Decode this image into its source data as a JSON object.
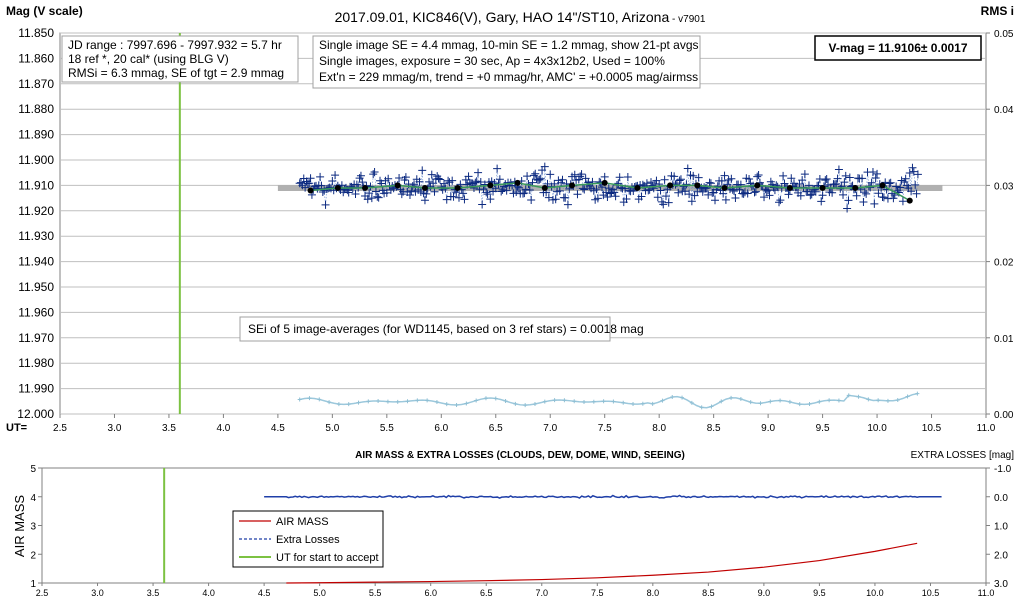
{
  "chart_data": [
    {
      "type": "scatter",
      "title": "2017.09.01,  KIC846(V),  Gary,  HAO  14\"/ST10,  Arizona",
      "title_version": " - v7901",
      "ylabel": "Mag (V scale)",
      "y2label": "RMS i",
      "xlabel": "UT=",
      "xlim": [
        2.5,
        11.0
      ],
      "ylim": [
        11.85,
        12.0
      ],
      "y_reversed": true,
      "y2lim": [
        0.0,
        0.05
      ],
      "x_ticks": [
        "2.5",
        "3.0",
        "3.5",
        "4.0",
        "4.5",
        "5.0",
        "5.5",
        "6.0",
        "6.5",
        "7.0",
        "7.5",
        "8.0",
        "8.5",
        "9.0",
        "9.5",
        "10.0",
        "10.5",
        "11.0"
      ],
      "y_ticks": [
        "11.850",
        "11.860",
        "11.870",
        "11.880",
        "11.890",
        "11.900",
        "11.910",
        "11.920",
        "11.930",
        "11.940",
        "11.950",
        "11.960",
        "11.970",
        "11.980",
        "11.990",
        "12.000"
      ],
      "y2_ticks": [
        "0.00",
        "0.01",
        "0.02",
        "0.03",
        "0.04",
        "0.05"
      ],
      "grid": true,
      "vertical_line_ut": 3.6,
      "reference_line": {
        "x": [
          4.5,
          10.6
        ],
        "y": 11.911
      },
      "single_images": {
        "x_range": [
          4.7,
          10.38
        ],
        "mean": 11.911,
        "scatter_mmag": 4.4
      },
      "averages_21pt": {
        "x": [
          4.8,
          5.05,
          5.3,
          5.6,
          5.85,
          6.15,
          6.45,
          6.7,
          6.95,
          7.2,
          7.5,
          7.8,
          8.1,
          8.35,
          8.6,
          8.9,
          9.2,
          9.5,
          9.8,
          10.05,
          10.3
        ],
        "y": [
          11.912,
          11.911,
          11.911,
          11.91,
          11.911,
          11.911,
          11.91,
          11.909,
          11.911,
          11.91,
          11.909,
          11.911,
          11.91,
          11.91,
          11.911,
          11.91,
          11.911,
          11.911,
          11.911,
          11.91,
          11.916
        ]
      },
      "rms_series": {
        "x_range": [
          4.7,
          10.38
        ],
        "values_approx": [
          0.0012,
          0.0025
        ]
      },
      "info_box_1": [
        "JD range : 7997.696 - 7997.932 =  5.7  hr",
        "18 ref *, 20 cal* (using BLG V)",
        "RMSi = 6.3 mmag, SE of tgt = 2.9 mmag"
      ],
      "info_box_2": [
        "Single image SE = 4.4 mmag, 10-min SE = 1.2 mmag, show 21-pt avgs",
        "Single images, exposure = 30 sec, Ap = 4x3x12b2, Used = 100%",
        "Ext'n = 229 mmag/m, trend = +0 mmag/hr, AMC' = +0.0005 mag/airmss"
      ],
      "vmag_box": "V-mag = 11.9106± 0.0017",
      "sei_box": "SEi of 5 image-averages (for WD1145, based on 3 ref stars) = 0.0018 mag"
    },
    {
      "type": "line",
      "title": "AIR MASS & EXTRA LOSSES (CLOUDS, DEW, DOME, WIND, SEEING)",
      "ylabel": "AIR MASS",
      "y2label": "EXTRA LOSSES [mag]",
      "xlim": [
        2.5,
        11.0
      ],
      "ylim": [
        1,
        5
      ],
      "y2lim": [
        -1.0,
        3.0
      ],
      "y2_reversed": true,
      "x_ticks": [
        "2.5",
        "3.0",
        "3.5",
        "4.0",
        "4.5",
        "5.0",
        "5.5",
        "6.0",
        "6.5",
        "7.0",
        "7.5",
        "8.0",
        "8.5",
        "9.0",
        "9.5",
        "10.0",
        "10.5",
        "11.0"
      ],
      "y_ticks": [
        "1",
        "2",
        "3",
        "4",
        "5"
      ],
      "y2_ticks": [
        "-1.0",
        "0.0",
        "1.0",
        "2.0",
        "3.0"
      ],
      "vertical_line_ut": 3.6,
      "series": [
        {
          "name": "AIR MASS",
          "color": "#c00000",
          "x": [
            4.7,
            5.0,
            5.5,
            6.0,
            6.5,
            7.0,
            7.5,
            8.0,
            8.5,
            9.0,
            9.5,
            10.0,
            10.38
          ],
          "y": [
            1.0,
            1.01,
            1.03,
            1.05,
            1.08,
            1.12,
            1.18,
            1.27,
            1.38,
            1.55,
            1.78,
            2.1,
            2.38
          ]
        },
        {
          "name": "Extra Losses",
          "color": "#1f3fa8",
          "x_range": [
            4.5,
            10.6
          ],
          "y": 0.0
        },
        {
          "name": "UT for start to accept",
          "color": "#7cc242",
          "x": 3.6
        }
      ]
    }
  ]
}
